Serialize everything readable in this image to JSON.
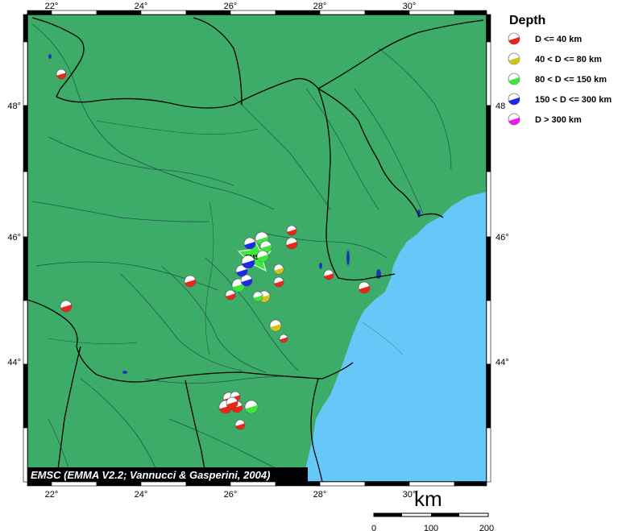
{
  "map": {
    "longitude_labels": [
      "22°",
      "24°",
      "26°",
      "28°",
      "30°"
    ],
    "latitude_labels": [
      "48°",
      "46°",
      "44°"
    ],
    "credit": "EMSC (EMMA V2.2; Vannucci & Gasperini, 2004)",
    "center_marker": "EMSC",
    "colors": {
      "land": "#3cac68",
      "sea": "#66c8f8",
      "frame": "#000000"
    }
  },
  "legend": {
    "title": "Depth",
    "items": [
      {
        "label": "D <= 40 km",
        "color": "#e8261a"
      },
      {
        "label": "40 < D <= 80 km",
        "color": "#d2c21a"
      },
      {
        "label": "80 < D <= 150 km",
        "color": "#3ce83c"
      },
      {
        "label": "150 < D <= 300 km",
        "color": "#1a2ae8"
      },
      {
        "label": "D > 300 km",
        "color": "#ee1aee"
      }
    ]
  },
  "scale": {
    "unit": "km",
    "labels": [
      "0",
      "100",
      "200"
    ]
  }
}
